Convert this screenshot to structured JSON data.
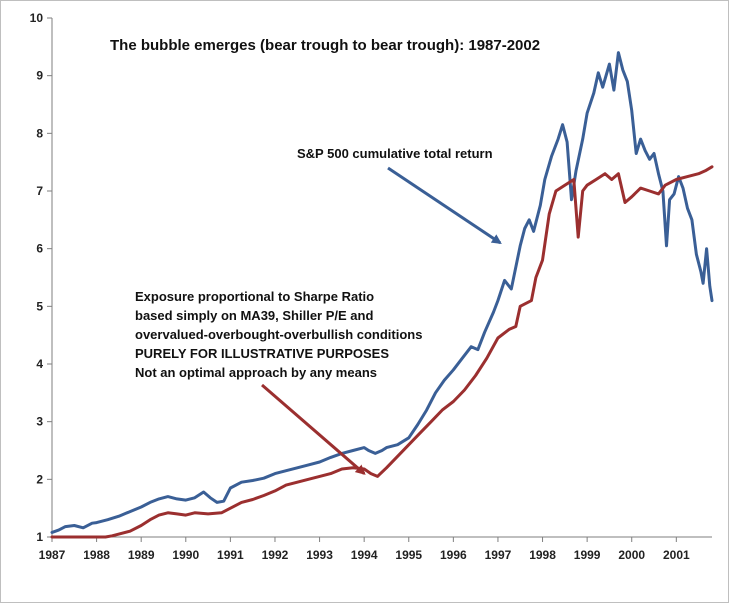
{
  "chart_data": {
    "type": "line",
    "title": "The bubble emerges (bear trough to bear trough): 1987-2002",
    "xlabel": "",
    "ylabel": "",
    "xlim": [
      1987,
      2001.8
    ],
    "ylim": [
      1,
      10
    ],
    "x_ticks": [
      "1987",
      "1988",
      "1989",
      "1990",
      "1991",
      "1992",
      "1993",
      "1994",
      "1995",
      "1996",
      "1997",
      "1998",
      "1999",
      "2000",
      "2001"
    ],
    "y_ticks": [
      "1",
      "2",
      "3",
      "4",
      "5",
      "6",
      "7",
      "8",
      "9",
      "10"
    ],
    "grid": false,
    "legend": "none",
    "series": [
      {
        "id": "sp500",
        "color": "#3a5f96",
        "points": [
          [
            1987.0,
            1.08
          ],
          [
            1987.15,
            1.12
          ],
          [
            1987.3,
            1.18
          ],
          [
            1987.5,
            1.2
          ],
          [
            1987.7,
            1.16
          ],
          [
            1987.9,
            1.24
          ],
          [
            1988.0,
            1.25
          ],
          [
            1988.25,
            1.3
          ],
          [
            1988.5,
            1.36
          ],
          [
            1988.75,
            1.44
          ],
          [
            1989.0,
            1.52
          ],
          [
            1989.2,
            1.6
          ],
          [
            1989.4,
            1.66
          ],
          [
            1989.6,
            1.7
          ],
          [
            1989.8,
            1.66
          ],
          [
            1990.0,
            1.64
          ],
          [
            1990.2,
            1.68
          ],
          [
            1990.4,
            1.78
          ],
          [
            1990.55,
            1.68
          ],
          [
            1990.7,
            1.6
          ],
          [
            1990.85,
            1.62
          ],
          [
            1991.0,
            1.85
          ],
          [
            1991.25,
            1.95
          ],
          [
            1991.5,
            1.98
          ],
          [
            1991.75,
            2.02
          ],
          [
            1992.0,
            2.1
          ],
          [
            1992.25,
            2.15
          ],
          [
            1992.5,
            2.2
          ],
          [
            1992.75,
            2.25
          ],
          [
            1993.0,
            2.3
          ],
          [
            1993.25,
            2.38
          ],
          [
            1993.5,
            2.45
          ],
          [
            1993.75,
            2.5
          ],
          [
            1994.0,
            2.55
          ],
          [
            1994.1,
            2.5
          ],
          [
            1994.25,
            2.45
          ],
          [
            1994.4,
            2.5
          ],
          [
            1994.5,
            2.55
          ],
          [
            1994.75,
            2.6
          ],
          [
            1995.0,
            2.72
          ],
          [
            1995.2,
            2.95
          ],
          [
            1995.4,
            3.2
          ],
          [
            1995.6,
            3.5
          ],
          [
            1995.8,
            3.72
          ],
          [
            1996.0,
            3.9
          ],
          [
            1996.2,
            4.1
          ],
          [
            1996.4,
            4.3
          ],
          [
            1996.55,
            4.25
          ],
          [
            1996.7,
            4.55
          ],
          [
            1996.9,
            4.9
          ],
          [
            1997.0,
            5.1
          ],
          [
            1997.15,
            5.45
          ],
          [
            1997.3,
            5.3
          ],
          [
            1997.5,
            6.05
          ],
          [
            1997.6,
            6.35
          ],
          [
            1997.7,
            6.5
          ],
          [
            1997.8,
            6.3
          ],
          [
            1997.95,
            6.75
          ],
          [
            1998.05,
            7.2
          ],
          [
            1998.2,
            7.6
          ],
          [
            1998.35,
            7.9
          ],
          [
            1998.45,
            8.15
          ],
          [
            1998.55,
            7.85
          ],
          [
            1998.65,
            6.85
          ],
          [
            1998.75,
            7.35
          ],
          [
            1998.9,
            7.9
          ],
          [
            1999.0,
            8.35
          ],
          [
            1999.15,
            8.7
          ],
          [
            1999.25,
            9.05
          ],
          [
            1999.35,
            8.8
          ],
          [
            1999.5,
            9.2
          ],
          [
            1999.6,
            8.75
          ],
          [
            1999.7,
            9.4
          ],
          [
            1999.8,
            9.1
          ],
          [
            1999.9,
            8.9
          ],
          [
            2000.0,
            8.4
          ],
          [
            2000.1,
            7.65
          ],
          [
            2000.2,
            7.9
          ],
          [
            2000.3,
            7.7
          ],
          [
            2000.4,
            7.55
          ],
          [
            2000.5,
            7.65
          ],
          [
            2000.6,
            7.3
          ],
          [
            2000.7,
            7.0
          ],
          [
            2000.78,
            6.05
          ],
          [
            2000.85,
            6.85
          ],
          [
            2000.95,
            6.95
          ],
          [
            2001.05,
            7.25
          ],
          [
            2001.15,
            7.05
          ],
          [
            2001.25,
            6.7
          ],
          [
            2001.35,
            6.5
          ],
          [
            2001.45,
            5.9
          ],
          [
            2001.55,
            5.6
          ],
          [
            2001.6,
            5.4
          ],
          [
            2001.68,
            6.0
          ],
          [
            2001.75,
            5.35
          ],
          [
            2001.8,
            5.1
          ]
        ]
      },
      {
        "id": "sharpe",
        "color": "#9b2f2f",
        "points": [
          [
            1987.0,
            1.0
          ],
          [
            1987.2,
            1.0
          ],
          [
            1987.4,
            1.0
          ],
          [
            1987.6,
            1.0
          ],
          [
            1987.8,
            1.0
          ],
          [
            1988.0,
            1.0
          ],
          [
            1988.2,
            1.0
          ],
          [
            1988.35,
            1.02
          ],
          [
            1988.5,
            1.05
          ],
          [
            1988.75,
            1.1
          ],
          [
            1989.0,
            1.2
          ],
          [
            1989.2,
            1.3
          ],
          [
            1989.4,
            1.38
          ],
          [
            1989.6,
            1.42
          ],
          [
            1989.8,
            1.4
          ],
          [
            1990.0,
            1.38
          ],
          [
            1990.2,
            1.42
          ],
          [
            1990.5,
            1.4
          ],
          [
            1990.8,
            1.42
          ],
          [
            1991.0,
            1.5
          ],
          [
            1991.25,
            1.6
          ],
          [
            1991.5,
            1.65
          ],
          [
            1991.75,
            1.72
          ],
          [
            1992.0,
            1.8
          ],
          [
            1992.25,
            1.9
          ],
          [
            1992.5,
            1.95
          ],
          [
            1992.75,
            2.0
          ],
          [
            1993.0,
            2.05
          ],
          [
            1993.25,
            2.1
          ],
          [
            1993.5,
            2.18
          ],
          [
            1993.75,
            2.2
          ],
          [
            1994.0,
            2.18
          ],
          [
            1994.15,
            2.1
          ],
          [
            1994.3,
            2.05
          ],
          [
            1994.5,
            2.2
          ],
          [
            1994.75,
            2.4
          ],
          [
            1995.0,
            2.6
          ],
          [
            1995.25,
            2.8
          ],
          [
            1995.5,
            3.0
          ],
          [
            1995.75,
            3.2
          ],
          [
            1996.0,
            3.35
          ],
          [
            1996.25,
            3.55
          ],
          [
            1996.5,
            3.8
          ],
          [
            1996.75,
            4.1
          ],
          [
            1997.0,
            4.45
          ],
          [
            1997.25,
            4.6
          ],
          [
            1997.4,
            4.65
          ],
          [
            1997.5,
            5.0
          ],
          [
            1997.75,
            5.1
          ],
          [
            1997.85,
            5.5
          ],
          [
            1998.0,
            5.8
          ],
          [
            1998.15,
            6.6
          ],
          [
            1998.3,
            7.0
          ],
          [
            1998.5,
            7.1
          ],
          [
            1998.7,
            7.2
          ],
          [
            1998.8,
            6.2
          ],
          [
            1998.9,
            7.0
          ],
          [
            1999.0,
            7.1
          ],
          [
            1999.2,
            7.2
          ],
          [
            1999.4,
            7.3
          ],
          [
            1999.55,
            7.2
          ],
          [
            1999.7,
            7.3
          ],
          [
            1999.85,
            6.8
          ],
          [
            2000.0,
            6.9
          ],
          [
            2000.2,
            7.05
          ],
          [
            2000.4,
            7.0
          ],
          [
            2000.6,
            6.95
          ],
          [
            2000.75,
            7.1
          ],
          [
            2001.0,
            7.2
          ],
          [
            2001.25,
            7.25
          ],
          [
            2001.5,
            7.3
          ],
          [
            2001.65,
            7.35
          ],
          [
            2001.8,
            7.42
          ]
        ]
      }
    ],
    "annotations": [
      {
        "id": "sp500-label",
        "lines": [
          {
            "text": "S&P 500 cumulative total return"
          }
        ],
        "arrow_to": [
          1997.05,
          6.1
        ]
      },
      {
        "id": "sharpe-label",
        "lines": [
          {
            "text": "Exposure proportional to Sharpe Ratio"
          },
          {
            "text": "based simply on MA39, Shiller P/E and"
          },
          {
            "text": "overvalued-overbought-overbullish conditions"
          },
          {
            "text": "PURELY FOR ILLUSTRATIVE PURPOSES",
            "color": "#4f6228"
          },
          {
            "text": "Not an optimal approach by any means"
          }
        ],
        "arrow_to": [
          1994.0,
          2.1
        ]
      }
    ]
  }
}
